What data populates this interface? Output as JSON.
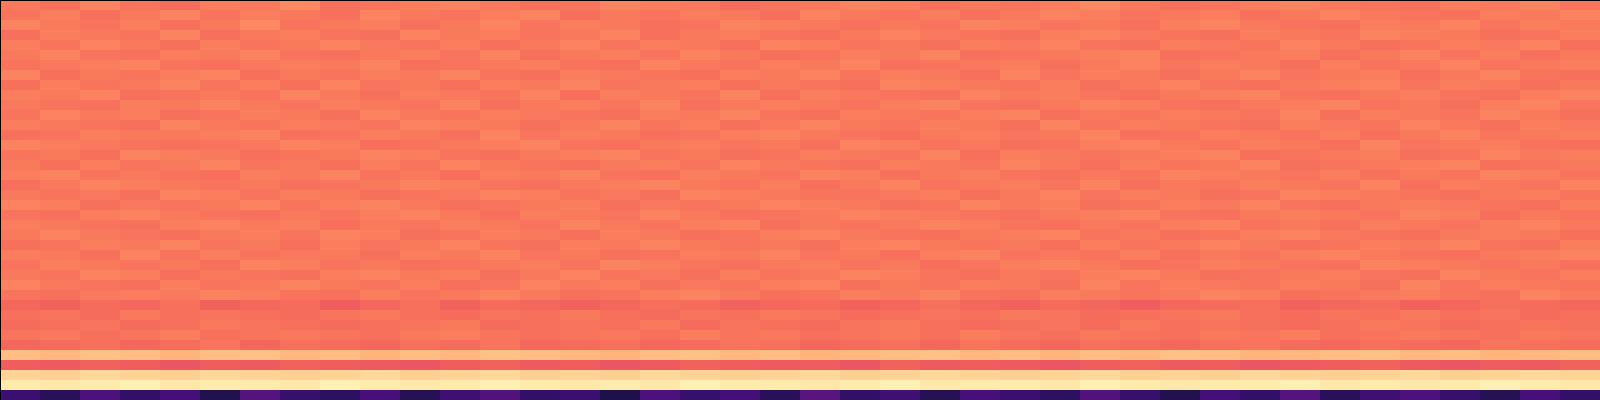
{
  "chart_data": {
    "type": "heatmap",
    "tick_labels": false,
    "color": "magma",
    "zlim": [
      0,
      100
    ],
    "cells": [
      [
        72,
        70,
        74,
        71,
        69,
        73,
        72,
        75,
        70,
        71,
        73,
        74,
        72,
        70,
        71,
        74,
        73,
        72,
        69,
        71,
        72,
        74,
        73,
        70,
        72,
        71,
        73,
        75,
        72,
        70,
        71,
        73,
        74,
        72,
        71,
        70,
        73,
        72,
        74,
        71
      ],
      [
        71,
        73,
        70,
        72,
        74,
        71,
        73,
        72,
        70,
        74,
        72,
        71,
        73,
        74,
        70,
        72,
        71,
        73,
        72,
        70,
        74,
        72,
        71,
        73,
        70,
        72,
        74,
        73,
        71,
        72,
        73,
        70,
        72,
        74,
        72,
        71,
        70,
        73,
        72,
        74
      ],
      [
        74,
        72,
        71,
        73,
        70,
        72,
        75,
        71,
        72,
        73,
        70,
        72,
        74,
        71,
        73,
        72,
        70,
        71,
        74,
        73,
        72,
        70,
        72,
        71,
        74,
        73,
        71,
        72,
        70,
        73,
        74,
        72,
        71,
        70,
        73,
        72,
        74,
        71,
        73,
        72
      ],
      [
        70,
        73,
        72,
        71,
        74,
        70,
        72,
        73,
        71,
        70,
        74,
        72,
        73,
        71,
        72,
        74,
        70,
        72,
        73,
        71,
        70,
        72,
        74,
        72,
        71,
        70,
        73,
        74,
        72,
        71,
        70,
        73,
        72,
        71,
        74,
        73,
        72,
        70,
        71,
        73
      ],
      [
        73,
        71,
        74,
        72,
        70,
        73,
        71,
        72,
        74,
        72,
        71,
        73,
        70,
        72,
        74,
        71,
        73,
        72,
        70,
        74,
        73,
        71,
        72,
        70,
        73,
        72,
        74,
        71,
        70,
        73,
        72,
        71,
        74,
        72,
        70,
        71,
        73,
        72,
        74,
        70
      ],
      [
        72,
        74,
        71,
        70,
        73,
        72,
        74,
        71,
        70,
        72,
        73,
        71,
        74,
        70,
        72,
        73,
        71,
        74,
        72,
        70,
        71,
        73,
        72,
        74,
        70,
        71,
        72,
        73,
        74,
        70,
        71,
        72,
        73,
        70,
        72,
        74,
        71,
        73,
        70,
        72
      ],
      [
        71,
        72,
        73,
        74,
        71,
        70,
        72,
        73,
        72,
        74,
        70,
        71,
        72,
        73,
        71,
        70,
        74,
        72,
        71,
        73,
        72,
        74,
        70,
        71,
        72,
        73,
        70,
        72,
        74,
        71,
        73,
        72,
        70,
        73,
        71,
        72,
        74,
        71,
        72,
        73
      ],
      [
        74,
        70,
        72,
        71,
        73,
        74,
        70,
        72,
        71,
        73,
        72,
        74,
        71,
        70,
        73,
        72,
        71,
        70,
        73,
        72,
        74,
        71,
        73,
        72,
        70,
        74,
        71,
        73,
        72,
        70,
        72,
        74,
        71,
        72,
        73,
        70,
        72,
        74,
        71,
        70
      ],
      [
        70,
        73,
        71,
        72,
        74,
        71,
        73,
        70,
        74,
        71,
        72,
        70,
        73,
        72,
        74,
        71,
        72,
        73,
        70,
        72,
        71,
        70,
        74,
        73,
        72,
        71,
        73,
        70,
        72,
        74,
        71,
        70,
        72,
        73,
        74,
        71,
        73,
        72,
        70,
        72
      ],
      [
        73,
        72,
        74,
        70,
        71,
        72,
        71,
        74,
        72,
        70,
        73,
        72,
        71,
        74,
        70,
        73,
        72,
        71,
        74,
        70,
        73,
        72,
        71,
        70,
        74,
        72,
        73,
        71,
        70,
        72,
        73,
        74,
        71,
        70,
        72,
        73,
        71,
        70,
        73,
        74
      ],
      [
        72,
        71,
        70,
        73,
        72,
        74,
        72,
        71,
        73,
        72,
        71,
        74,
        70,
        72,
        73,
        71,
        74,
        70,
        72,
        73,
        72,
        71,
        73,
        74,
        71,
        70,
        72,
        74,
        73,
        71,
        70,
        72,
        73,
        74,
        71,
        72,
        70,
        73,
        74,
        71
      ],
      [
        71,
        74,
        72,
        73,
        70,
        71,
        73,
        72,
        70,
        74,
        72,
        71,
        73,
        72,
        71,
        70,
        73,
        72,
        74,
        71,
        70,
        73,
        72,
        71,
        73,
        74,
        70,
        72,
        71,
        73,
        72,
        71,
        74,
        70,
        73,
        72,
        71,
        74,
        72,
        70
      ],
      [
        73,
        72,
        71,
        70,
        74,
        72,
        71,
        73,
        72,
        71,
        74,
        73,
        72,
        70,
        72,
        74,
        71,
        73,
        70,
        72,
        74,
        72,
        71,
        73,
        72,
        70,
        74,
        71,
        73,
        72,
        71,
        70,
        73,
        72,
        71,
        74,
        72,
        70,
        73,
        72
      ],
      [
        70,
        71,
        73,
        72,
        72,
        73,
        74,
        70,
        71,
        73,
        72,
        70,
        74,
        71,
        73,
        72,
        70,
        71,
        73,
        74,
        72,
        71,
        70,
        72,
        73,
        71,
        72,
        74,
        70,
        71,
        73,
        72,
        71,
        73,
        70,
        72,
        74,
        71,
        72,
        73
      ],
      [
        74,
        73,
        72,
        71,
        70,
        71,
        72,
        74,
        73,
        70,
        71,
        72,
        73,
        74,
        71,
        70,
        72,
        73,
        71,
        72,
        70,
        74,
        73,
        71,
        72,
        70,
        71,
        73,
        74,
        72,
        71,
        73,
        72,
        70,
        74,
        71,
        72,
        73,
        71,
        70
      ],
      [
        71,
        72,
        70,
        74,
        73,
        72,
        70,
        71,
        72,
        74,
        73,
        71,
        70,
        72,
        73,
        74,
        71,
        72,
        70,
        71,
        73,
        72,
        71,
        74,
        70,
        73,
        72,
        71,
        72,
        73,
        74,
        70,
        71,
        72,
        73,
        70,
        71,
        74,
        72,
        73
      ],
      [
        72,
        70,
        73,
        71,
        72,
        74,
        71,
        72,
        70,
        73,
        71,
        74,
        72,
        71,
        70,
        72,
        73,
        71,
        74,
        72,
        71,
        70,
        73,
        72,
        71,
        74,
        72,
        70,
        73,
        71,
        72,
        74,
        70,
        71,
        72,
        73,
        74,
        70,
        71,
        72
      ],
      [
        73,
        74,
        71,
        72,
        71,
        70,
        73,
        72,
        74,
        71,
        72,
        70,
        73,
        72,
        74,
        71,
        70,
        73,
        72,
        71,
        74,
        73,
        70,
        72,
        73,
        71,
        70,
        72,
        71,
        74,
        73,
        72,
        71,
        73,
        70,
        72,
        71,
        74,
        73,
        71
      ],
      [
        70,
        72,
        74,
        73,
        72,
        71,
        72,
        70,
        71,
        72,
        74,
        73,
        71,
        70,
        72,
        73,
        74,
        72,
        71,
        73,
        70,
        72,
        74,
        71,
        72,
        73,
        71,
        74,
        70,
        72,
        71,
        73,
        72,
        71,
        74,
        70,
        73,
        72,
        71,
        74
      ],
      [
        72,
        71,
        72,
        70,
        74,
        73,
        71,
        73,
        72,
        70,
        71,
        72,
        74,
        73,
        71,
        72,
        70,
        74,
        73,
        72,
        71,
        71,
        72,
        73,
        70,
        72,
        74,
        71,
        73,
        72,
        70,
        71,
        74,
        73,
        72,
        71,
        70,
        72,
        73,
        71
      ],
      [
        74,
        73,
        70,
        72,
        71,
        72,
        74,
        71,
        73,
        74,
        72,
        70,
        71,
        72,
        73,
        70,
        72,
        71,
        72,
        74,
        73,
        72,
        70,
        71,
        74,
        72,
        73,
        70,
        71,
        73,
        72,
        74,
        71,
        70,
        72,
        73,
        72,
        71,
        70,
        73
      ],
      [
        71,
        70,
        73,
        74,
        72,
        71,
        70,
        72,
        71,
        73,
        74,
        72,
        70,
        73,
        72,
        71,
        74,
        72,
        70,
        71,
        72,
        74,
        73,
        72,
        71,
        70,
        72,
        73,
        74,
        71,
        70,
        72,
        73,
        72,
        71,
        74,
        73,
        70,
        72,
        71
      ],
      [
        73,
        72,
        71,
        70,
        73,
        74,
        72,
        73,
        70,
        72,
        71,
        73,
        72,
        71,
        74,
        72,
        71,
        73,
        74,
        70,
        72,
        71,
        72,
        74,
        73,
        71,
        70,
        72,
        71,
        73,
        74,
        71,
        72,
        70,
        73,
        72,
        71,
        73,
        74,
        72
      ],
      [
        72,
        74,
        72,
        71,
        70,
        72,
        73,
        71,
        74,
        73,
        70,
        71,
        73,
        72,
        70,
        73,
        72,
        70,
        71,
        73,
        74,
        72,
        71,
        70,
        72,
        73,
        74,
        71,
        72,
        70,
        71,
        73,
        74,
        72,
        71,
        70,
        72,
        73,
        72,
        70
      ],
      [
        70,
        71,
        73,
        72,
        74,
        71,
        72,
        70,
        73,
        71,
        72,
        74,
        71,
        70,
        73,
        72,
        74,
        72,
        71,
        72,
        70,
        73,
        74,
        72,
        71,
        72,
        70,
        73,
        71,
        72,
        74,
        72,
        70,
        71,
        73,
        72,
        74,
        71,
        70,
        73
      ],
      [
        73,
        72,
        70,
        74,
        71,
        73,
        71,
        72,
        72,
        70,
        73,
        72,
        74,
        71,
        72,
        70,
        71,
        73,
        72,
        74,
        71,
        72,
        70,
        73,
        74,
        71,
        72,
        71,
        73,
        70,
        72,
        71,
        73,
        74,
        72,
        71,
        70,
        72,
        73,
        74
      ],
      [
        71,
        73,
        72,
        71,
        72,
        70,
        74,
        73,
        71,
        72,
        70,
        71,
        72,
        73,
        71,
        74,
        73,
        71,
        70,
        72,
        73,
        71,
        72,
        70,
        71,
        73,
        74,
        72,
        70,
        71,
        73,
        72,
        71,
        70,
        74,
        73,
        72,
        71,
        72,
        70
      ],
      [
        72,
        71,
        74,
        73,
        70,
        72,
        71,
        70,
        73,
        74,
        72,
        73,
        70,
        72,
        74,
        71,
        72,
        70,
        73,
        71,
        72,
        74,
        73,
        71,
        70,
        72,
        71,
        73,
        74,
        72,
        70,
        71,
        72,
        73,
        71,
        70,
        74,
        72,
        71,
        73
      ],
      [
        74,
        72,
        71,
        70,
        73,
        71,
        72,
        74,
        72,
        71,
        73,
        70,
        71,
        74,
        72,
        73,
        70,
        72,
        71,
        73,
        74,
        70,
        72,
        71,
        73,
        72,
        70,
        74,
        71,
        73,
        72,
        71,
        73,
        72,
        70,
        74,
        71,
        73,
        72,
        71
      ],
      [
        71,
        70,
        72,
        73,
        72,
        74,
        73,
        71,
        70,
        73,
        71,
        72,
        74,
        72,
        70,
        71,
        73,
        74,
        72,
        70,
        71,
        73,
        72,
        74,
        71,
        70,
        73,
        72,
        71,
        72,
        74,
        73,
        70,
        71,
        72,
        73,
        71,
        70,
        74,
        72
      ],
      [
        68,
        67,
        69,
        68,
        70,
        67,
        68,
        69,
        66,
        68,
        70,
        67,
        69,
        68,
        67,
        68,
        70,
        69,
        67,
        68,
        69,
        67,
        68,
        70,
        68,
        67,
        69,
        68,
        66,
        68,
        69,
        70,
        67,
        68,
        69,
        67,
        68,
        70,
        69,
        68
      ],
      [
        70,
        71,
        69,
        72,
        70,
        71,
        70,
        69,
        71,
        72,
        70,
        69,
        71,
        70,
        72,
        70,
        69,
        71,
        70,
        72,
        71,
        69,
        70,
        71,
        70,
        72,
        71,
        69,
        70,
        71,
        72,
        70,
        69,
        71,
        70,
        72,
        70,
        71,
        69,
        70
      ],
      [
        69,
        70,
        71,
        69,
        70,
        72,
        71,
        70,
        69,
        70,
        71,
        72,
        69,
        70,
        71,
        70,
        72,
        69,
        71,
        70,
        69,
        71,
        72,
        70,
        69,
        70,
        71,
        69,
        72,
        70,
        71,
        70,
        69,
        70,
        72,
        71,
        69,
        70,
        71,
        70
      ],
      [
        71,
        72,
        70,
        71,
        73,
        70,
        71,
        72,
        71,
        70,
        72,
        73,
        71,
        70,
        71,
        72,
        70,
        73,
        71,
        72,
        70,
        71,
        72,
        70,
        73,
        71,
        70,
        72,
        71,
        70,
        72,
        71,
        73,
        70,
        71,
        72,
        71,
        70,
        72,
        71
      ],
      [
        68,
        69,
        70,
        68,
        69,
        71,
        68,
        70,
        69,
        68,
        70,
        69,
        71,
        68,
        69,
        70,
        68,
        69,
        71,
        70,
        68,
        69,
        70,
        68,
        71,
        69,
        68,
        70,
        69,
        68,
        70,
        71,
        69,
        68,
        70,
        69,
        68,
        71,
        70,
        69
      ],
      [
        86,
        85,
        87,
        86,
        84,
        86,
        87,
        85,
        86,
        84,
        86,
        85,
        87,
        86,
        85,
        84,
        86,
        87,
        85,
        86,
        84,
        85,
        86,
        87,
        85,
        86,
        84,
        86,
        85,
        87,
        86,
        84,
        85,
        86,
        87,
        85,
        86,
        84,
        85,
        86
      ],
      [
        66,
        65,
        67,
        66,
        64,
        66,
        65,
        67,
        66,
        65,
        64,
        66,
        67,
        65,
        66,
        64,
        65,
        67,
        66,
        65,
        66,
        64,
        67,
        65,
        66,
        65,
        64,
        66,
        67,
        65,
        66,
        64,
        65,
        66,
        67,
        65,
        64,
        66,
        65,
        67
      ],
      [
        91,
        90,
        92,
        91,
        90,
        92,
        91,
        90,
        91,
        92,
        90,
        91,
        92,
        90,
        91,
        90,
        92,
        91,
        90,
        91,
        92,
        90,
        91,
        92,
        91,
        90,
        91,
        92,
        90,
        91,
        90,
        92,
        91,
        90,
        91,
        92,
        90,
        91,
        92,
        91
      ],
      [
        96,
        95,
        96,
        97,
        95,
        96,
        96,
        95,
        97,
        96,
        95,
        96,
        97,
        96,
        95,
        96,
        95,
        97,
        96,
        96,
        95,
        96,
        97,
        95,
        96,
        96,
        95,
        97,
        96,
        95,
        96,
        96,
        97,
        95,
        96,
        95,
        96,
        97,
        96,
        95
      ],
      [
        20,
        16,
        24,
        18,
        22,
        14,
        26,
        19,
        17,
        23,
        15,
        21,
        25,
        18,
        20,
        13,
        24,
        19,
        22,
        16,
        27,
        18,
        21,
        15,
        23,
        20,
        17,
        25,
        19,
        14,
        22,
        18,
        26,
        16,
        21,
        24,
        19,
        15,
        23,
        18
      ]
    ]
  }
}
